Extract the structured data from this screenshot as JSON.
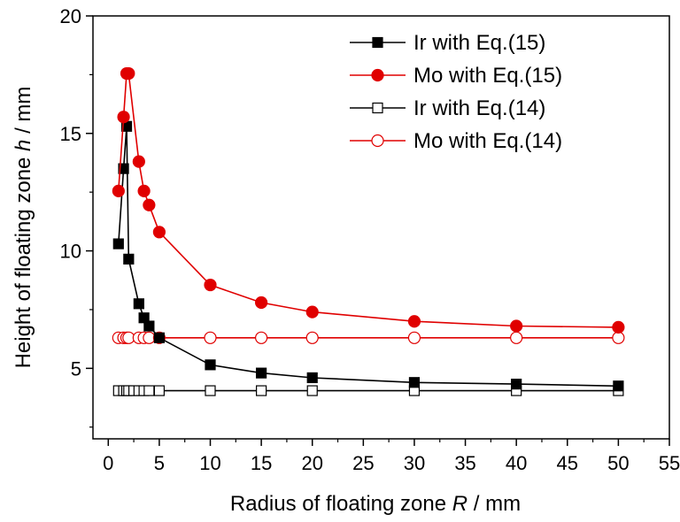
{
  "chart_data": {
    "type": "line",
    "title": "",
    "xlabel": {
      "main": "Radius of floating zone ",
      "var": "R",
      "unit": " / mm"
    },
    "ylabel": {
      "main": "Height of floating zone ",
      "var": "h",
      "unit": " / mm"
    },
    "xlim": [
      -1.5,
      55
    ],
    "ylim": [
      2,
      20
    ],
    "xticks": [
      0,
      5,
      10,
      15,
      20,
      25,
      30,
      35,
      40,
      45,
      50,
      55
    ],
    "yticks": [
      5,
      10,
      15,
      20
    ],
    "xtick_labels": [
      "0",
      "5",
      "10",
      "15",
      "20",
      "25",
      "30",
      "35",
      "40",
      "45",
      "50",
      "55"
    ],
    "ytick_labels": [
      "5",
      "10",
      "15",
      "20"
    ],
    "grid": false,
    "legend_position": "top-right",
    "series": [
      {
        "name": "Ir with Eq.(15)",
        "color": "#000000",
        "marker": "square-filled",
        "x": [
          1,
          1.5,
          1.8,
          2,
          3,
          3.5,
          4,
          5,
          10,
          15,
          20,
          30,
          40,
          50
        ],
        "y": [
          10.3,
          13.5,
          15.3,
          9.65,
          7.75,
          7.15,
          6.8,
          6.3,
          5.15,
          4.8,
          4.6,
          4.4,
          4.33,
          4.25
        ]
      },
      {
        "name": "Mo with Eq.(15)",
        "color": "#e00000",
        "marker": "circle-filled",
        "x": [
          1,
          1.5,
          1.8,
          2,
          3,
          3.5,
          4,
          5,
          10,
          15,
          20,
          30,
          40,
          50
        ],
        "y": [
          12.55,
          15.7,
          17.55,
          17.55,
          13.8,
          12.55,
          11.95,
          10.8,
          8.55,
          7.8,
          7.4,
          7.0,
          6.8,
          6.75
        ]
      },
      {
        "name": "Ir with Eq.(14)",
        "color": "#000000",
        "marker": "square-open",
        "x": [
          1,
          1.5,
          1.8,
          2,
          2.5,
          3,
          3.5,
          4,
          5,
          10,
          15,
          20,
          30,
          40,
          50
        ],
        "y": [
          4.05,
          4.05,
          4.05,
          4.05,
          4.05,
          4.05,
          4.05,
          4.05,
          4.05,
          4.05,
          4.05,
          4.05,
          4.05,
          4.05,
          4.05
        ]
      },
      {
        "name": "Mo with Eq.(14)",
        "color": "#e00000",
        "marker": "circle-open",
        "x": [
          1,
          1.5,
          1.8,
          2,
          3,
          3.5,
          4,
          5,
          10,
          15,
          20,
          30,
          40,
          50
        ],
        "y": [
          6.3,
          6.3,
          6.3,
          6.3,
          6.3,
          6.3,
          6.3,
          6.3,
          6.3,
          6.3,
          6.3,
          6.3,
          6.3,
          6.3
        ]
      }
    ]
  }
}
